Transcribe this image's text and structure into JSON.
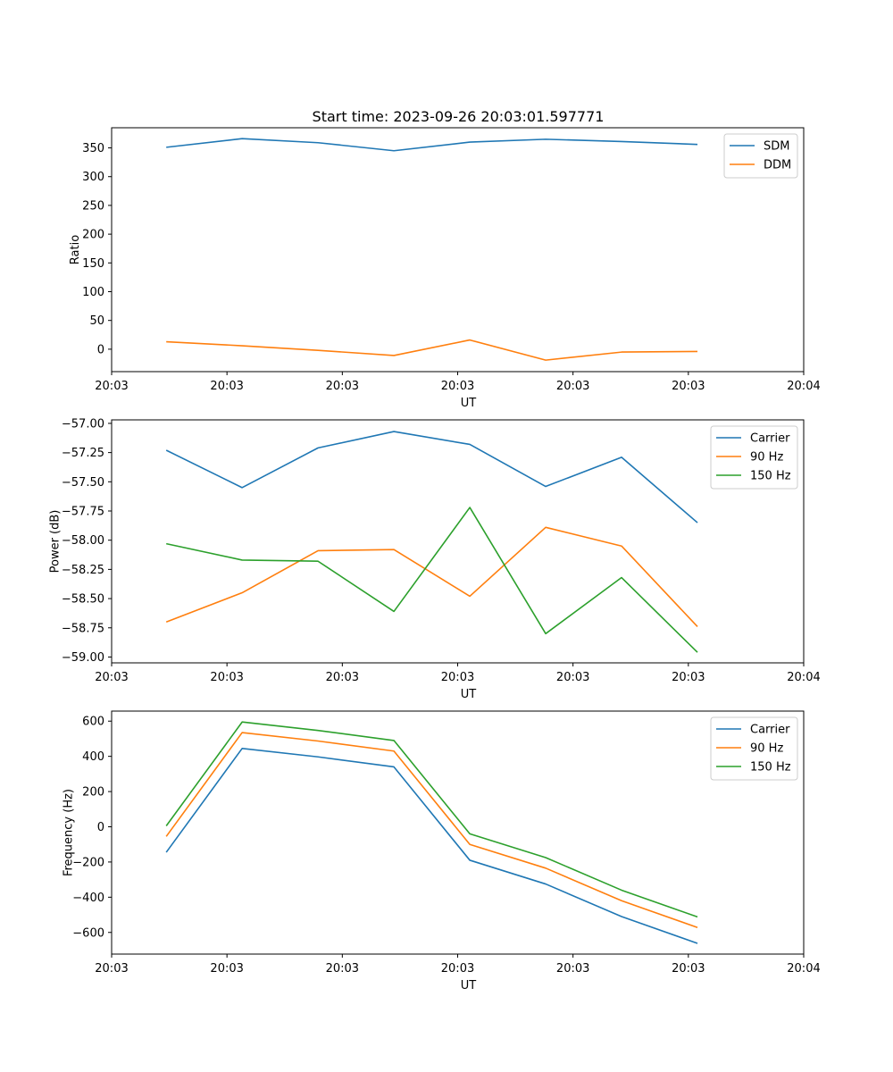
{
  "figure": {
    "title": "Start time: 2023-09-26 20:03:01.597771"
  },
  "colors": {
    "blue": "#1f77b4",
    "orange": "#ff7f0e",
    "green": "#2ca02c"
  },
  "chart_data": [
    {
      "type": "line",
      "title": "Start time: 2023-09-26 20:03:01.597771",
      "xlabel": "UT",
      "ylabel": "Ratio",
      "xlim": [
        -0.72,
        8.4
      ],
      "ylim": [
        -39,
        385
      ],
      "x_ticks": [
        -0.72,
        0.8,
        2.32,
        3.84,
        5.36,
        6.88,
        8.4
      ],
      "x_tick_labels": [
        "20:03",
        "20:03",
        "20:03",
        "20:03",
        "20:03",
        "20:03",
        "20:04"
      ],
      "y_ticks": [
        0,
        50,
        100,
        150,
        200,
        250,
        300,
        350
      ],
      "y_tick_labels": [
        "0",
        "50",
        "100",
        "150",
        "200",
        "250",
        "300",
        "350"
      ],
      "x": [
        0,
        1,
        2,
        3,
        4,
        5,
        6,
        7
      ],
      "legend_position": "top-right",
      "series": [
        {
          "name": "SDM",
          "color": "#1f77b4",
          "values": [
            351,
            366,
            359,
            345,
            360,
            365,
            361,
            356
          ]
        },
        {
          "name": "DDM",
          "color": "#ff7f0e",
          "values": [
            13,
            6,
            -2,
            -11,
            16,
            -19,
            -5,
            -4
          ]
        }
      ]
    },
    {
      "type": "line",
      "xlabel": "UT",
      "ylabel": "Power (dB)",
      "xlim": [
        -0.72,
        8.4
      ],
      "ylim": [
        -59.05,
        -56.97
      ],
      "x_ticks": [
        -0.72,
        0.8,
        2.32,
        3.84,
        5.36,
        6.88,
        8.4
      ],
      "x_tick_labels": [
        "20:03",
        "20:03",
        "20:03",
        "20:03",
        "20:03",
        "20:03",
        "20:04"
      ],
      "y_ticks": [
        -59.0,
        -58.75,
        -58.5,
        -58.25,
        -58.0,
        -57.75,
        -57.5,
        -57.25,
        -57.0
      ],
      "y_tick_labels": [
        "−59.00",
        "−58.75",
        "−58.50",
        "−58.25",
        "−58.00",
        "−57.75",
        "−57.50",
        "−57.25",
        "−57.00"
      ],
      "x": [
        0,
        1,
        2,
        3,
        4,
        5,
        6,
        7
      ],
      "legend_position": "top-right",
      "series": [
        {
          "name": "Carrier",
          "color": "#1f77b4",
          "values": [
            -57.23,
            -57.55,
            -57.21,
            -57.07,
            -57.18,
            -57.54,
            -57.29,
            -57.85
          ]
        },
        {
          "name": "90 Hz",
          "color": "#ff7f0e",
          "values": [
            -58.7,
            -58.45,
            -58.09,
            -58.08,
            -58.48,
            -57.89,
            -58.05,
            -58.74
          ]
        },
        {
          "name": "150 Hz",
          "color": "#2ca02c",
          "values": [
            -58.03,
            -58.17,
            -58.18,
            -58.61,
            -57.72,
            -58.8,
            -58.32,
            -58.96
          ]
        }
      ]
    },
    {
      "type": "line",
      "xlabel": "UT",
      "ylabel": "Frequency (Hz)",
      "xlim": [
        -0.72,
        8.4
      ],
      "ylim": [
        -723,
        657
      ],
      "x_ticks": [
        -0.72,
        0.8,
        2.32,
        3.84,
        5.36,
        6.88,
        8.4
      ],
      "x_tick_labels": [
        "20:03",
        "20:03",
        "20:03",
        "20:03",
        "20:03",
        "20:03",
        "20:04"
      ],
      "y_ticks": [
        -600,
        -400,
        -200,
        0,
        200,
        400,
        600
      ],
      "y_tick_labels": [
        "−600",
        "−400",
        "−200",
        "0",
        "200",
        "400",
        "600"
      ],
      "x": [
        0,
        1,
        2,
        3,
        4,
        5,
        6,
        7
      ],
      "legend_position": "top-right",
      "series": [
        {
          "name": "Carrier",
          "color": "#1f77b4",
          "values": [
            -145,
            445,
            397,
            340,
            -190,
            -325,
            -510,
            -662
          ]
        },
        {
          "name": "90 Hz",
          "color": "#ff7f0e",
          "values": [
            -55,
            535,
            487,
            430,
            -100,
            -235,
            -420,
            -572
          ]
        },
        {
          "name": "150 Hz",
          "color": "#2ca02c",
          "values": [
            5,
            595,
            547,
            490,
            -40,
            -175,
            -360,
            -512
          ]
        }
      ]
    }
  ]
}
